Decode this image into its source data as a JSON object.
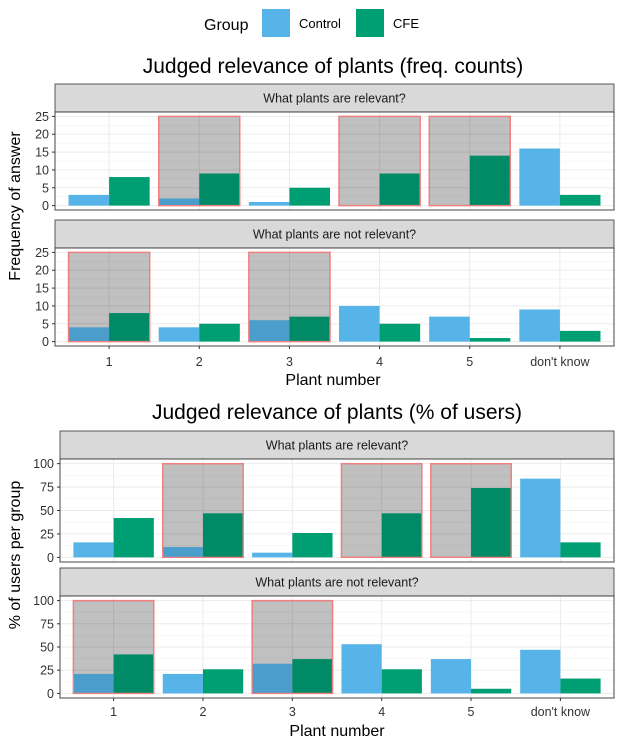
{
  "legend": {
    "title": "Group",
    "items": [
      {
        "label": "Control",
        "color": "#56B4E9"
      },
      {
        "label": "CFE",
        "color": "#009E73"
      }
    ]
  },
  "highlight_color": "#F08080",
  "chart_data": [
    {
      "type": "bar",
      "title": "Judged relevance of plants (freq. counts)",
      "xlabel": "Plant number",
      "ylabel": "Frequency of answer",
      "categories": [
        "1",
        "2",
        "3",
        "4",
        "5",
        "don't know"
      ],
      "ylim": [
        0,
        25
      ],
      "yticks": [
        0,
        5,
        10,
        15,
        20,
        25
      ],
      "panels": [
        {
          "strip": "What plants are relevant?",
          "highlighted_categories": [
            "2",
            "4",
            "5"
          ],
          "series": [
            {
              "name": "Control",
              "values": [
                3,
                2,
                1,
                0,
                0,
                16
              ]
            },
            {
              "name": "CFE",
              "values": [
                8,
                9,
                5,
                9,
                14,
                3
              ]
            }
          ]
        },
        {
          "strip": "What plants are not relevant?",
          "highlighted_categories": [
            "1",
            "3"
          ],
          "series": [
            {
              "name": "Control",
              "values": [
                4,
                4,
                6,
                10,
                7,
                9
              ]
            },
            {
              "name": "CFE",
              "values": [
                8,
                5,
                7,
                5,
                1,
                3
              ]
            }
          ]
        }
      ]
    },
    {
      "type": "bar",
      "title": "Judged relevance of plants (% of users)",
      "xlabel": "Plant number",
      "ylabel": "% of users per group",
      "categories": [
        "1",
        "2",
        "3",
        "4",
        "5",
        "don't know"
      ],
      "ylim": [
        0,
        100
      ],
      "yticks": [
        0,
        25,
        50,
        75,
        100
      ],
      "panels": [
        {
          "strip": "What plants are relevant?",
          "highlighted_categories": [
            "2",
            "4",
            "5"
          ],
          "series": [
            {
              "name": "Control",
              "values": [
                16,
                11,
                5,
                0,
                0,
                84
              ]
            },
            {
              "name": "CFE",
              "values": [
                42,
                47,
                26,
                47,
                74,
                16
              ]
            }
          ]
        },
        {
          "strip": "What plants are not relevant?",
          "highlighted_categories": [
            "1",
            "3"
          ],
          "series": [
            {
              "name": "Control",
              "values": [
                21,
                21,
                32,
                53,
                37,
                47
              ]
            },
            {
              "name": "CFE",
              "values": [
                42,
                26,
                37,
                26,
                5,
                16
              ]
            }
          ]
        }
      ]
    }
  ]
}
